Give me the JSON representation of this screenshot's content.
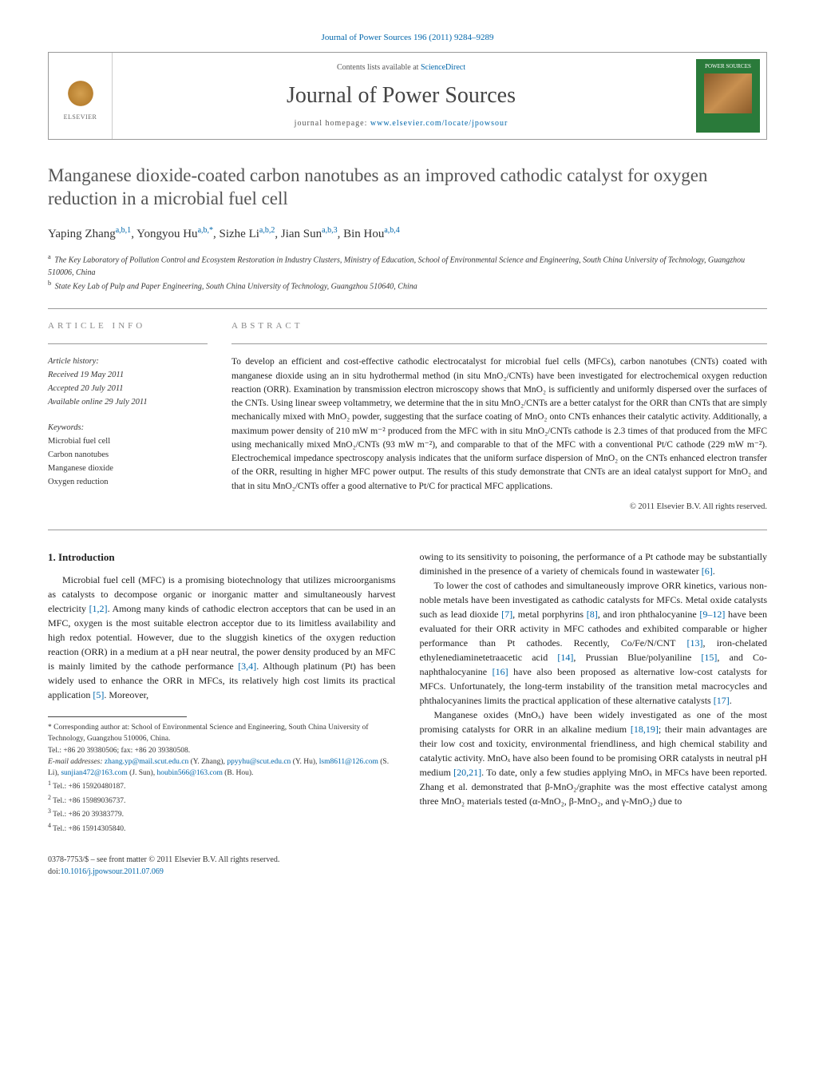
{
  "journal_ref": "Journal of Power Sources 196 (2011) 9284–9289",
  "header": {
    "contents_prefix": "Contents lists available at ",
    "contents_link": "ScienceDirect",
    "journal_name": "Journal of Power Sources",
    "homepage_prefix": "journal homepage: ",
    "homepage_url": "www.elsevier.com/locate/jpowsour",
    "elsevier": "ELSEVIER",
    "cover_title": "POWER SOURCES"
  },
  "title": "Manganese dioxide-coated carbon nanotubes as an improved cathodic catalyst for oxygen reduction in a microbial fuel cell",
  "authors_html": "Yaping Zhang<sup>a,b,1</sup>, Yongyou Hu<sup>a,b,</sup>*, Sizhe Li<sup>a,b,2</sup>, Jian Sun<sup>a,b,3</sup>, Bin Hou<sup>a,b,4</sup>",
  "authors": [
    {
      "name": "Yaping Zhang",
      "sup": "a,b,1"
    },
    {
      "name": "Yongyou Hu",
      "sup": "a,b,*"
    },
    {
      "name": "Sizhe Li",
      "sup": "a,b,2"
    },
    {
      "name": "Jian Sun",
      "sup": "a,b,3"
    },
    {
      "name": "Bin Hou",
      "sup": "a,b,4"
    }
  ],
  "affiliations": {
    "a": "The Key Laboratory of Pollution Control and Ecosystem Restoration in Industry Clusters, Ministry of Education, School of Environmental Science and Engineering, South China University of Technology, Guangzhou 510006, China",
    "b": "State Key Lab of Pulp and Paper Engineering, South China University of Technology, Guangzhou 510640, China"
  },
  "article_info_label": "ARTICLE INFO",
  "abstract_label": "ABSTRACT",
  "history": {
    "label": "Article history:",
    "received": "Received 19 May 2011",
    "accepted": "Accepted 20 July 2011",
    "online": "Available online 29 July 2011"
  },
  "keywords_label": "Keywords:",
  "keywords": [
    "Microbial fuel cell",
    "Carbon nanotubes",
    "Manganese dioxide",
    "Oxygen reduction"
  ],
  "abstract": "To develop an efficient and cost-effective cathodic electrocatalyst for microbial fuel cells (MFCs), carbon nanotubes (CNTs) coated with manganese dioxide using an in situ hydrothermal method (in situ MnO₂/CNTs) have been investigated for electrochemical oxygen reduction reaction (ORR). Examination by transmission electron microscopy shows that MnO₂ is sufficiently and uniformly dispersed over the surfaces of the CNTs. Using linear sweep voltammetry, we determine that the in situ MnO₂/CNTs are a better catalyst for the ORR than CNTs that are simply mechanically mixed with MnO₂ powder, suggesting that the surface coating of MnO₂ onto CNTs enhances their catalytic activity. Additionally, a maximum power density of 210 mW m⁻² produced from the MFC with in situ MnO₂/CNTs cathode is 2.3 times of that produced from the MFC using mechanically mixed MnO₂/CNTs (93 mW m⁻²), and comparable to that of the MFC with a conventional Pt/C cathode (229 mW m⁻²). Electrochemical impedance spectroscopy analysis indicates that the uniform surface dispersion of MnO₂ on the CNTs enhanced electron transfer of the ORR, resulting in higher MFC power output. The results of this study demonstrate that CNTs are an ideal catalyst support for MnO₂ and that in situ MnO₂/CNTs offer a good alternative to Pt/C for practical MFC applications.",
  "copyright": "© 2011 Elsevier B.V. All rights reserved.",
  "section1": {
    "heading": "1. Introduction",
    "p1_pre": "Microbial fuel cell (MFC) is a promising biotechnology that utilizes microorganisms as catalysts to decompose organic or inorganic matter and simultaneously harvest electricity ",
    "p1_ref1": "[1,2]",
    "p1_mid": ". Among many kinds of cathodic electron acceptors that can be used in an MFC, oxygen is the most suitable electron acceptor due to its limitless availability and high redox potential. However, due to the sluggish kinetics of the oxygen reduction reaction (ORR) in a medium at a pH near neutral, the power density produced by an MFC is mainly limited by the cathode performance ",
    "p1_ref2": "[3,4]",
    "p1_mid2": ". Although platinum (Pt) has been widely used to enhance the ORR in MFCs, its relatively high cost limits its practical application ",
    "p1_ref3": "[5]",
    "p1_end": ". Moreover,",
    "p1b_pre": "owing to its sensitivity to poisoning, the performance of a Pt cathode may be substantially diminished in the presence of a variety of chemicals found in wastewater ",
    "p1b_ref": "[6]",
    "p1b_end": ".",
    "p2_pre": "To lower the cost of cathodes and simultaneously improve ORR kinetics, various non-noble metals have been investigated as cathodic catalysts for MFCs. Metal oxide catalysts such as lead dioxide ",
    "p2_ref1": "[7]",
    "p2_m1": ", metal porphyrins ",
    "p2_ref2": "[8]",
    "p2_m2": ", and iron phthalocyanine ",
    "p2_ref3": "[9–12]",
    "p2_m3": " have been evaluated for their ORR activity in MFC cathodes and exhibited comparable or higher performance than Pt cathodes. Recently, Co/Fe/N/CNT ",
    "p2_ref4": "[13]",
    "p2_m4": ", iron-chelated ethylenediaminetetraacetic acid ",
    "p2_ref5": "[14]",
    "p2_m5": ", Prussian Blue/polyaniline ",
    "p2_ref6": "[15]",
    "p2_m6": ", and Co-naphthalocyanine ",
    "p2_ref7": "[16]",
    "p2_m7": " have also been proposed as alternative low-cost catalysts for MFCs. Unfortunately, the long-term instability of the transition metal macrocycles and phthalocyanines limits the practical application of these alternative catalysts ",
    "p2_ref8": "[17]",
    "p2_end": ".",
    "p3_pre": "Manganese oxides (MnOₓ) have been widely investigated as one of the most promising catalysts for ORR in an alkaline medium ",
    "p3_ref1": "[18,19]",
    "p3_m1": "; their main advantages are their low cost and toxicity, environmental friendliness, and high chemical stability and catalytic activity. MnOₓ have also been found to be promising ORR catalysts in neutral pH medium ",
    "p3_ref2": "[20,21]",
    "p3_m2": ". To date, only a few studies applying MnOₓ in MFCs have been reported. Zhang et al. demonstrated that β-MnO₂/graphite was the most effective catalyst among three MnO₂ materials tested (α-MnO₂, β-MnO₂, and γ-MnO₂) due to"
  },
  "footnotes": {
    "corr": "* Corresponding author at: School of Environmental Science and Engineering, South China University of Technology, Guangzhou 510006, China.",
    "tel": "Tel.: +86 20 39380506; fax: +86 20 39380508.",
    "email_label": "E-mail addresses: ",
    "emails": [
      {
        "addr": "zhang.yp@mail.scut.edu.cn",
        "who": " (Y. Zhang), "
      },
      {
        "addr": "ppyyhu@scut.edu.cn",
        "who": " (Y. Hu), "
      },
      {
        "addr": "lsm8611@126.com",
        "who": " (S. Li), "
      },
      {
        "addr": "sunjian472@163.com",
        "who": " (J. Sun), "
      },
      {
        "addr": "houbin566@163.com",
        "who": " (B. Hou)."
      }
    ],
    "tels": [
      {
        "sup": "1",
        "text": " Tel.: +86 15920480187."
      },
      {
        "sup": "2",
        "text": " Tel.: +86 15989036737."
      },
      {
        "sup": "3",
        "text": " Tel.: +86 20 39383779."
      },
      {
        "sup": "4",
        "text": " Tel.: +86 15914305840."
      }
    ]
  },
  "footer": {
    "issn": "0378-7753/$ – see front matter © 2011 Elsevier B.V. All rights reserved.",
    "doi_label": "doi:",
    "doi": "10.1016/j.jpowsour.2011.07.069"
  },
  "colors": {
    "link": "#0066aa",
    "heading": "#555555",
    "text": "#222222",
    "cover_bg": "#2a7a3a"
  }
}
